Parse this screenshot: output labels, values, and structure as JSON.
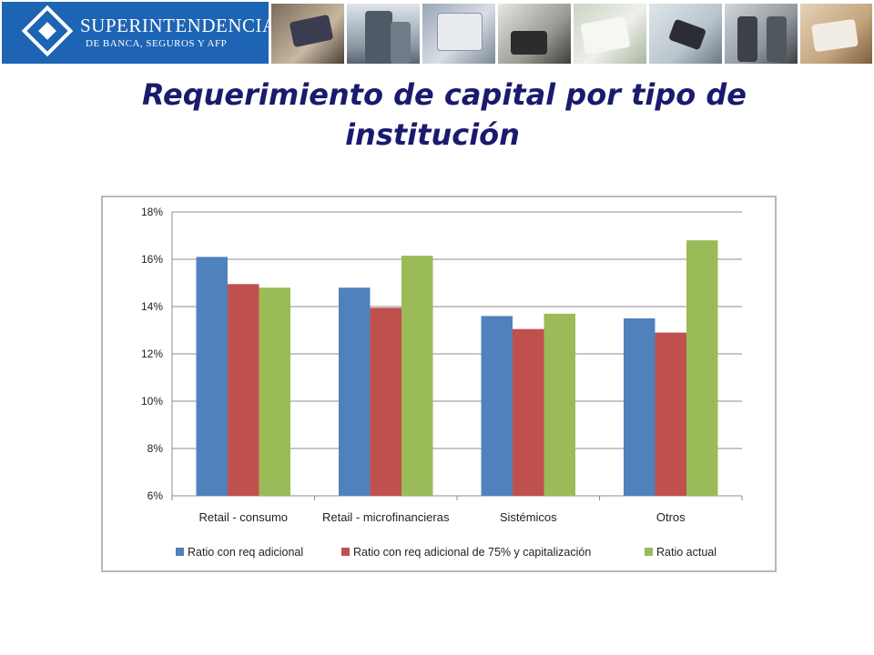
{
  "header": {
    "logo_line1": "SUPERINTENDENCIA",
    "logo_line2": "DE BANCA, SEGUROS Y AFP",
    "brand_color": "#1e64b4",
    "photos": [
      "credit-card-photo",
      "office-building-photo",
      "enter-key-photo",
      "laptop-user-photo",
      "signing-document-photo",
      "card-terminal-photo",
      "business-handshake-photo",
      "hands-writing-photo"
    ]
  },
  "slide": {
    "title_line1": "Requerimiento de capital por tipo de",
    "title_line2": "institución"
  },
  "chart_data": {
    "type": "bar",
    "categories": [
      "Retail - consumo",
      "Retail - microfinancieras",
      "Sistémicos",
      "Otros"
    ],
    "series": [
      {
        "name": "Ratio con req adicional",
        "color": "#4f81bd",
        "values": [
          16.1,
          14.8,
          13.6,
          13.5
        ]
      },
      {
        "name": "Ratio con req adicional  de 75% y capitalización",
        "color": "#c0504d",
        "values": [
          14.95,
          13.95,
          13.05,
          12.9
        ]
      },
      {
        "name": "Ratio actual",
        "color": "#9bbb59",
        "values": [
          14.8,
          16.15,
          13.7,
          16.8
        ]
      }
    ],
    "ylim": [
      6,
      18
    ],
    "yticks": [
      6,
      8,
      10,
      12,
      14,
      16,
      18
    ],
    "ytick_labels": [
      "6%",
      "8%",
      "10%",
      "12%",
      "14%",
      "16%",
      "18%"
    ],
    "grid": true,
    "legend_position": "bottom"
  }
}
